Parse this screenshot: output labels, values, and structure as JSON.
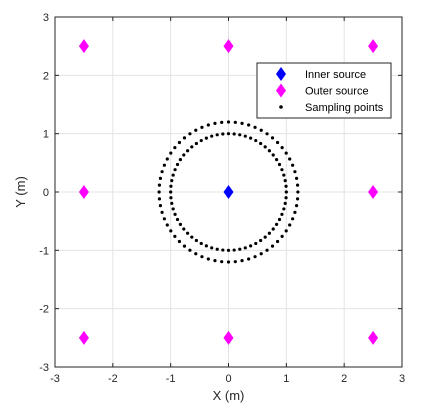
{
  "chart_data": {
    "type": "scatter",
    "xlabel": "X (m)",
    "ylabel": "Y (m)",
    "xlim": [
      -3,
      3
    ],
    "ylim": [
      -3,
      3
    ],
    "xticks": [
      -3,
      -2,
      -1,
      0,
      1,
      2,
      3
    ],
    "yticks": [
      -3,
      -2,
      -1,
      0,
      1,
      2,
      3
    ],
    "xtick_labels": [
      "-3",
      "-2",
      "-1",
      "0",
      "1",
      "2",
      "3"
    ],
    "ytick_labels": [
      "-3",
      "-2",
      "-1",
      "0",
      "1",
      "2",
      "3"
    ],
    "grid": true,
    "legend_position": "top-right",
    "series": [
      {
        "name": "Inner source",
        "marker": "diamond",
        "color": "#0000ff",
        "points": [
          [
            0,
            0
          ]
        ]
      },
      {
        "name": "Outer source",
        "marker": "diamond",
        "color": "#ff00ff",
        "points": [
          [
            -2.5,
            2.5
          ],
          [
            0,
            2.5
          ],
          [
            2.5,
            2.5
          ],
          [
            -2.5,
            0
          ],
          [
            2.5,
            0
          ],
          [
            -2.5,
            -2.5
          ],
          [
            0,
            -2.5
          ],
          [
            2.5,
            -2.5
          ]
        ]
      },
      {
        "name": "Sampling points",
        "marker": "dot",
        "color": "#000000",
        "rings": [
          {
            "center": [
              0,
              0
            ],
            "radius": 1.0,
            "count": 64
          },
          {
            "center": [
              0,
              0
            ],
            "radius": 1.2,
            "count": 64
          }
        ]
      }
    ]
  }
}
